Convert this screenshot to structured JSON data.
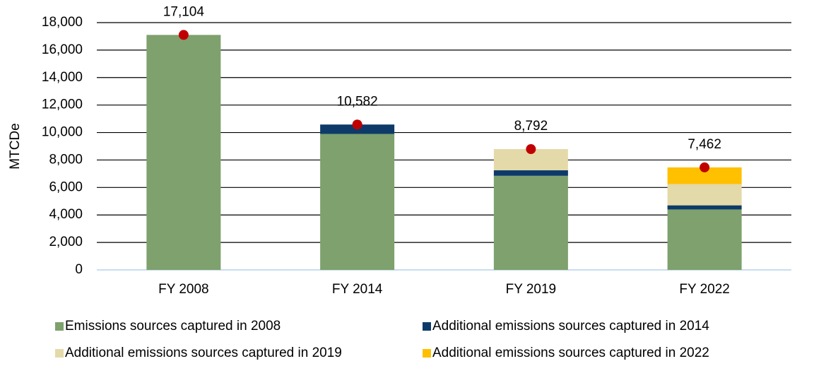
{
  "chart_data": {
    "type": "bar",
    "stacked": true,
    "y_label": "MTCDe",
    "categories": [
      "FY 2008",
      "FY 2014",
      "FY 2019",
      "FY 2022"
    ],
    "series": [
      {
        "name": "Emissions sources captured in 2008",
        "color": "#7ea16d",
        "values": [
          17104,
          9900,
          6850,
          4400
        ]
      },
      {
        "name": "Additional emissions sources captured in 2014",
        "color": "#0e3a69",
        "values": [
          null,
          682,
          400,
          300
        ]
      },
      {
        "name": "Additional emissions sources captured in 2019",
        "color": "#e4d9a8",
        "values": [
          null,
          null,
          1542,
          1550
        ]
      },
      {
        "name": "Additional emissions sources captured in 2022",
        "color": "#ffc000",
        "values": [
          null,
          null,
          null,
          1212
        ]
      }
    ],
    "totals": {
      "color": "#c00000",
      "values": [
        17104,
        10582,
        8792,
        7462
      ],
      "value_labels": [
        "17,104",
        "10,582",
        "8,792",
        "7,462"
      ]
    },
    "ylim": [
      0,
      18000
    ],
    "yticks": [
      0,
      {
        "value": 2000,
        "label": "2,000"
      },
      {
        "value": 4000,
        "label": "4,000"
      },
      {
        "value": 6000,
        "label": "6,000"
      },
      {
        "value": 8000,
        "label": "8,000"
      },
      {
        "value": 10000,
        "label": "10,000"
      },
      {
        "value": 12000,
        "label": "12,000"
      },
      {
        "value": 14000,
        "label": "14,000"
      },
      {
        "value": 16000,
        "label": "16,000"
      },
      {
        "value": 18000,
        "label": "18,000"
      }
    ],
    "grid": true
  }
}
